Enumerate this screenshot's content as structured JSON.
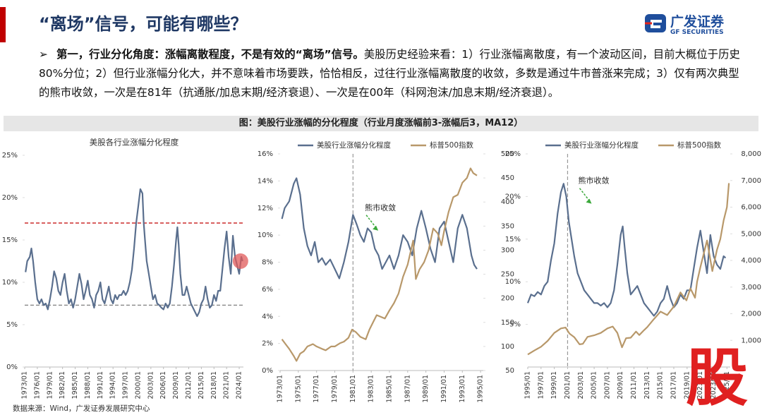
{
  "header": {
    "title": "“离场”信号，可能有哪些？"
  },
  "logo": {
    "name": "广发证券",
    "en": "GF SECURITIES"
  },
  "bullet": {
    "lead": "第一，行业分化角度：涨幅离散程度，不是有效的“离场”信号。",
    "text": "美股历史经验来看：1）行业涨幅离散度，有一个波动区间，目前大概位于历史80%分位；2）但行业涨幅分化大，并不意味着市场要跌，恰恰相反，过往行业涨幅离散度的收敛，多数是通过牛市普涨来完成；3）仅有两次典型的熊市收敛，一次是在81年（抗通胀/加息末期/经济衰退）、一次是在00年（科网泡沫/加息末期/经济衰退）。"
  },
  "figure_title": "图：美股行业涨幅的分化程度（行业月度涨幅前3-涨幅后3，MA12）",
  "source": "数据来源：Wind，广发证券发展研究中心",
  "watermark": "股",
  "chart_data": [
    {
      "type": "line",
      "title": "美股各行业涨幅分化程度",
      "xlim": [
        1973,
        2025
      ],
      "xticks": [
        {
          "value": 1973,
          "label": "1973/01"
        },
        {
          "value": 1976,
          "label": "1976/01"
        },
        {
          "value": 1979,
          "label": "1979/01"
        },
        {
          "value": 1982,
          "label": "1982/01"
        },
        {
          "value": 1985,
          "label": "1985/01"
        },
        {
          "value": 1988,
          "label": "1988/01"
        },
        {
          "value": 1991,
          "label": "1991/01"
        },
        {
          "value": 1994,
          "label": "1994/01"
        },
        {
          "value": 1997,
          "label": "1997/01"
        },
        {
          "value": 2000,
          "label": "2000/01"
        },
        {
          "value": 2003,
          "label": "2003/01"
        },
        {
          "value": 2006,
          "label": "2006/01"
        },
        {
          "value": 2009,
          "label": "2009/01"
        },
        {
          "value": 2012,
          "label": "2012/01"
        },
        {
          "value": 2015,
          "label": "2015/01"
        },
        {
          "value": 2018,
          "label": "2018/01"
        },
        {
          "value": 2021,
          "label": "2021/01"
        },
        {
          "value": 2024,
          "label": "2024/01"
        }
      ],
      "ylim": [
        0,
        25
      ],
      "yticks": [
        {
          "value": 0,
          "label": "0%"
        },
        {
          "value": 5,
          "label": "5%"
        },
        {
          "value": 10,
          "label": "10%"
        },
        {
          "value": 15,
          "label": "15%"
        },
        {
          "value": 20,
          "label": "20%"
        },
        {
          "value": 25,
          "label": "25%"
        }
      ],
      "hlines": [
        {
          "value": 17,
          "color": "#c00000"
        },
        {
          "value": 7.3,
          "color": "#808080"
        }
      ],
      "highlight": {
        "x": 2024.3,
        "y": 12.5,
        "color": "#e05a5a"
      },
      "series": [
        {
          "color": "#5a6f8e",
          "x": [
            1973.2,
            1973.6,
            1974.2,
            1974.6,
            1975,
            1975.5,
            1976,
            1976.5,
            1977,
            1977.5,
            1978,
            1978.5,
            1979,
            1979.5,
            1980,
            1980.5,
            1981,
            1981.5,
            1982,
            1982.5,
            1983,
            1983.5,
            1984,
            1984.5,
            1985,
            1985.5,
            1986,
            1986.5,
            1987,
            1987.5,
            1988,
            1988.5,
            1989,
            1989.5,
            1990,
            1990.5,
            1991,
            1991.5,
            1992,
            1992.5,
            1993,
            1993.5,
            1994,
            1994.5,
            1995,
            1995.5,
            1996,
            1996.5,
            1997,
            1997.5,
            1998,
            1998.5,
            1999,
            1999.5,
            2000,
            2000.5,
            2001,
            2001.3,
            2001.6,
            2002,
            2002.5,
            2003,
            2003.5,
            2004,
            2004.5,
            2005,
            2005.5,
            2006,
            2006.5,
            2007,
            2007.5,
            2008,
            2008.5,
            2009,
            2009.3,
            2009.6,
            2010,
            2010.5,
            2011,
            2011.5,
            2012,
            2012.5,
            2013,
            2013.5,
            2014,
            2014.5,
            2015,
            2015.5,
            2016,
            2016.5,
            2017,
            2017.5,
            2018,
            2018.5,
            2019,
            2019.5,
            2020,
            2020.5,
            2021,
            2021.5,
            2022,
            2022.5,
            2023,
            2023.5,
            2024,
            2024.5,
            2024.8
          ],
          "values": [
            11.2,
            12.5,
            13,
            14,
            12.5,
            10,
            8,
            7.5,
            8,
            7.3,
            7.5,
            6.8,
            8,
            9.5,
            11.3,
            10.5,
            9,
            8.5,
            10,
            11,
            9,
            7.5,
            8,
            7,
            8,
            9.5,
            11,
            9.8,
            8,
            9,
            10.2,
            8.5,
            8,
            7,
            8.5,
            9,
            10,
            8,
            7.5,
            8.5,
            9.5,
            8,
            7.5,
            8.5,
            8,
            8.5,
            8.5,
            9,
            8.5,
            9,
            10,
            11.5,
            14,
            17,
            19,
            21,
            20.5,
            17,
            15,
            12.5,
            11,
            9.5,
            8,
            8.5,
            7.5,
            7.3,
            7,
            6.8,
            7.5,
            7,
            7.5,
            9.5,
            12,
            15,
            16.5,
            14.5,
            11,
            8.5,
            8.5,
            9.5,
            8.5,
            7.5,
            7,
            6.5,
            6,
            6.5,
            7.5,
            8,
            9.5,
            8,
            7,
            7.3,
            8.5,
            7.8,
            9,
            9,
            11.5,
            14,
            16,
            13,
            11,
            15.5,
            13,
            12,
            11,
            13,
            12.5
          ]
        }
      ]
    },
    {
      "type": "line",
      "legend": "top",
      "xlim": [
        1973,
        1995.3
      ],
      "xticks": [
        {
          "value": 1973,
          "label": "1973/01"
        },
        {
          "value": 1975,
          "label": "1975/01"
        },
        {
          "value": 1977,
          "label": "1977/01"
        },
        {
          "value": 1979,
          "label": "1979/01"
        },
        {
          "value": 1981,
          "label": "1981/01"
        },
        {
          "value": 1983,
          "label": "1983/01"
        },
        {
          "value": 1985,
          "label": "1985/01"
        },
        {
          "value": 1987,
          "label": "1987/01"
        },
        {
          "value": 1989,
          "label": "1989/01"
        },
        {
          "value": 1991,
          "label": "1991/01"
        },
        {
          "value": 1993,
          "label": "1993/01"
        },
        {
          "value": 1995,
          "label": "1995/01"
        }
      ],
      "ylim": [
        0,
        16
      ],
      "yticks": [
        {
          "value": 0,
          "label": "0%"
        },
        {
          "value": 2,
          "label": "2%"
        },
        {
          "value": 4,
          "label": "4%"
        },
        {
          "value": 6,
          "label": "6%"
        },
        {
          "value": 8,
          "label": "8%"
        },
        {
          "value": 10,
          "label": "10%"
        },
        {
          "value": 12,
          "label": "12%"
        },
        {
          "value": 14,
          "label": "14%"
        },
        {
          "value": 16,
          "label": "16%"
        }
      ],
      "y2lim": [
        50,
        500
      ],
      "y2ticks": [
        50,
        100,
        150,
        200,
        250,
        300,
        350,
        400,
        450,
        500
      ],
      "vlines": [
        {
          "value": 1981,
          "color": "#999999"
        }
      ],
      "annotations": [
        {
          "text": "熊市收敛",
          "x": 1982.3,
          "y": 12,
          "color": "#3aa83a"
        }
      ],
      "series": [
        {
          "name": "美股行业涨幅分化程度",
          "color": "#5a6f8e",
          "x": [
            1973.2,
            1973.5,
            1974,
            1974.5,
            1974.8,
            1975.2,
            1975.6,
            1976,
            1976.4,
            1976.8,
            1977.2,
            1977.6,
            1978,
            1978.5,
            1979,
            1979.5,
            1980,
            1980.5,
            1981,
            1981.4,
            1981.8,
            1982.2,
            1982.6,
            1983,
            1983.4,
            1983.8,
            1984.2,
            1984.6,
            1985,
            1985.5,
            1986,
            1986.5,
            1987,
            1987.5,
            1988,
            1988.5,
            1989,
            1989.5,
            1990,
            1990.5,
            1991,
            1991.5,
            1992,
            1992.5,
            1993,
            1993.5,
            1994,
            1994.3,
            1994.6
          ],
          "values": [
            11.2,
            12,
            12.5,
            13.8,
            14.2,
            13,
            10.5,
            9.2,
            8.5,
            9.5,
            8,
            8.3,
            7.8,
            8.2,
            7.5,
            6.8,
            8,
            9.5,
            11.5,
            10.8,
            10,
            9.5,
            10.5,
            10.2,
            9,
            8.5,
            7.5,
            8,
            8.5,
            7.5,
            8.5,
            10,
            9.5,
            8.5,
            10.5,
            11.8,
            10.5,
            9,
            8,
            10.5,
            11,
            9.5,
            8,
            10.5,
            11.5,
            10.5,
            8.5,
            7.8,
            7.5
          ]
        },
        {
          "name": "标普500指数",
          "color": "#b8986a",
          "axis": "y2",
          "x": [
            1973.2,
            1973.6,
            1974,
            1974.5,
            1974.8,
            1975.2,
            1975.6,
            1976,
            1976.6,
            1977,
            1977.6,
            1978,
            1978.6,
            1979,
            1979.6,
            1980,
            1980.5,
            1980.9,
            1981.3,
            1981.8,
            1982.4,
            1982.8,
            1983.2,
            1983.6,
            1984,
            1984.5,
            1985,
            1985.5,
            1986,
            1986.5,
            1987,
            1987.6,
            1987.9,
            1988.3,
            1988.8,
            1989.3,
            1989.8,
            1990.3,
            1990.7,
            1991,
            1991.5,
            1992,
            1992.5,
            1993,
            1993.5,
            1993.9,
            1994.2,
            1994.6
          ],
          "values": [
            115,
            105,
            95,
            80,
            70,
            85,
            90,
            100,
            105,
            100,
            95,
            92,
            100,
            100,
            107,
            110,
            118,
            135,
            130,
            120,
            115,
            135,
            150,
            165,
            162,
            158,
            175,
            190,
            210,
            245,
            270,
            320,
            240,
            260,
            275,
            300,
            345,
            335,
            310,
            340,
            380,
            410,
            415,
            440,
            450,
            470,
            460,
            455
          ]
        }
      ]
    },
    {
      "type": "line",
      "legend": "top",
      "xlim": [
        1995,
        2025.5
      ],
      "xticks": [
        {
          "value": 1995,
          "label": "1995/01"
        },
        {
          "value": 1997,
          "label": "1997/01"
        },
        {
          "value": 1999,
          "label": "1999/01"
        },
        {
          "value": 2001,
          "label": "2001/01"
        },
        {
          "value": 2003,
          "label": "2003/01"
        },
        {
          "value": 2005,
          "label": "2005/01"
        },
        {
          "value": 2007,
          "label": "2007/01"
        },
        {
          "value": 2009,
          "label": "2009/01"
        },
        {
          "value": 2011,
          "label": "2011/01"
        },
        {
          "value": 2013,
          "label": "2013/01"
        },
        {
          "value": 2015,
          "label": "2015/01"
        },
        {
          "value": 2017,
          "label": "2017/01"
        },
        {
          "value": 2019,
          "label": "2019/01"
        },
        {
          "value": 2021,
          "label": "2021/01"
        },
        {
          "value": 2023,
          "label": "2023/01"
        },
        {
          "value": 2025,
          "label": "2025/01"
        }
      ],
      "ylim": [
        0,
        25
      ],
      "yticks": [
        {
          "value": 5,
          "label": "5%"
        },
        {
          "value": 10,
          "label": "10%"
        },
        {
          "value": 15,
          "label": "15%"
        },
        {
          "value": 20,
          "label": "20%"
        },
        {
          "value": 25,
          "label": "25%"
        }
      ],
      "y2lim": [
        0,
        8000
      ],
      "y2ticks": [
        {
          "value": 1000,
          "label": "1,000"
        },
        {
          "value": 2000,
          "label": "2,000"
        },
        {
          "value": 3000,
          "label": "3,000"
        },
        {
          "value": 4000,
          "label": "4,000"
        },
        {
          "value": 5000,
          "label": "5,000"
        },
        {
          "value": 6000,
          "label": "6,000"
        },
        {
          "value": 7000,
          "label": "7,000"
        },
        {
          "value": 8000,
          "label": "8,000"
        }
      ],
      "vlines": [
        {
          "value": 2001,
          "color": "#999999"
        }
      ],
      "annotations": [
        {
          "text": "熊市收敛",
          "x": 2002.6,
          "y": 21.8,
          "color": "#3aa83a"
        }
      ],
      "series": [
        {
          "name": "美股行业涨幅分化程度",
          "color": "#5a6f8e",
          "x": [
            1995,
            1995.5,
            1996,
            1996.5,
            1997,
            1997.5,
            1998,
            1998.5,
            1999,
            1999.5,
            2000,
            2000.4,
            2000.8,
            2001.2,
            2001.6,
            2002,
            2002.5,
            2003,
            2003.5,
            2004,
            2004.5,
            2005,
            2005.5,
            2006,
            2006.5,
            2007,
            2007.5,
            2008,
            2008.5,
            2009,
            2009.3,
            2009.6,
            2010,
            2010.5,
            2011,
            2011.5,
            2012,
            2012.5,
            2013,
            2013.5,
            2014,
            2014.5,
            2015,
            2015.5,
            2016,
            2016.5,
            2017,
            2017.5,
            2018,
            2018.5,
            2019,
            2019.5,
            2020,
            2020.5,
            2021,
            2021.5,
            2022,
            2022.5,
            2023,
            2023.5,
            2024,
            2024.5,
            2024.8
          ],
          "values": [
            7.5,
            8.5,
            8.3,
            8.8,
            8.5,
            9.5,
            10,
            12.5,
            14.5,
            18,
            20.5,
            21.5,
            20,
            17,
            15,
            13,
            11,
            10,
            9,
            8.5,
            8,
            7.5,
            7.5,
            7.2,
            7.5,
            7,
            7.5,
            9,
            12,
            15.5,
            16.5,
            14,
            11,
            8.5,
            9,
            9.5,
            8.5,
            7.5,
            7,
            6.5,
            6,
            6.5,
            7.5,
            8,
            9.5,
            8,
            7,
            7.5,
            8.5,
            8,
            9,
            9,
            11.5,
            14,
            16,
            13.5,
            11,
            15.5,
            13,
            12,
            11.5,
            13,
            12.8
          ]
        },
        {
          "name": "标普500指数",
          "color": "#b8986a",
          "axis": "y2",
          "x": [
            1995,
            1996,
            1997,
            1998,
            1999,
            2000,
            2000.7,
            2001.3,
            2002,
            2002.8,
            2003.3,
            2004,
            2005,
            2006,
            2007,
            2007.8,
            2008.5,
            2009.2,
            2009.8,
            2010.5,
            2011.3,
            2011.8,
            2012.5,
            2013,
            2014,
            2015,
            2016,
            2017,
            2018,
            2018.9,
            2019.5,
            2020.2,
            2020.5,
            2021,
            2022,
            2022.8,
            2023.5,
            2024,
            2024.5,
            2025,
            2025.3
          ],
          "values": [
            470,
            620,
            760,
            980,
            1280,
            1450,
            1480,
            1250,
            1120,
            850,
            870,
            1130,
            1190,
            1280,
            1450,
            1520,
            1280,
            740,
            1080,
            1100,
            1330,
            1200,
            1380,
            1500,
            1800,
            2080,
            1950,
            2270,
            2800,
            2500,
            2950,
            2600,
            3200,
            3750,
            4750,
            3600,
            4400,
            4800,
            5500,
            6000,
            6900
          ]
        }
      ]
    }
  ]
}
